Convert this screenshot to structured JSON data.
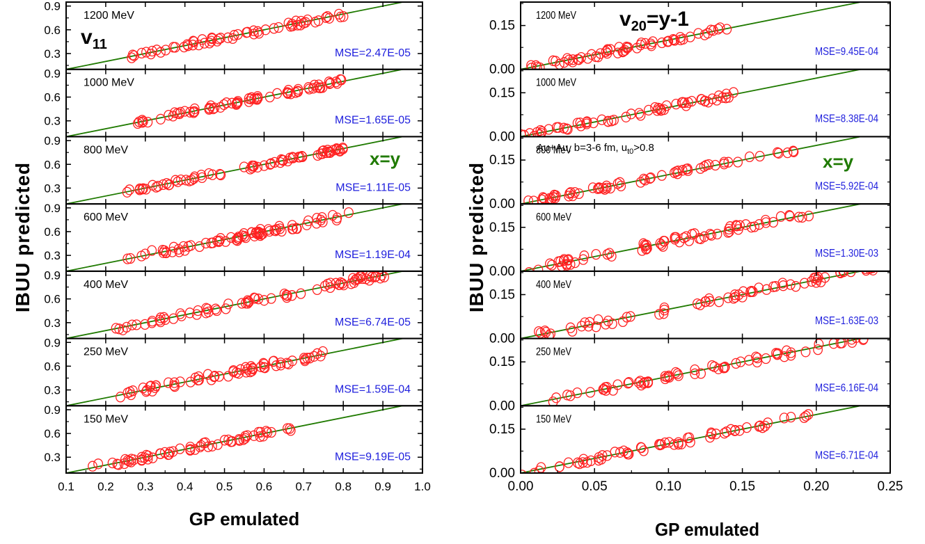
{
  "chart_data": [
    {
      "type": "scatter",
      "title": "",
      "xlabel": "GP emulated",
      "ylabel": "IBUU predicted",
      "xlim": [
        0.1,
        1.0
      ],
      "ylim": [
        0.1,
        0.95
      ],
      "x_ticks": [
        "0.1",
        "0.2",
        "0.3",
        "0.4",
        "0.5",
        "0.6",
        "0.7",
        "0.8",
        "0.9",
        "1.0"
      ],
      "y_ticks": [
        "0.3",
        "0.6",
        "0.9"
      ],
      "observable_label": {
        "main": "v",
        "sub": "11"
      },
      "line_label": "x=y",
      "line_color": "#1f7a00",
      "marker_color": "#ff2020",
      "mse_color": "#1f1fdd",
      "panels": [
        {
          "energy": "1200 MeV",
          "mse": "MSE=2.47E-05",
          "range": [
            0.24,
            0.81
          ],
          "n": 60,
          "scatter": 0.035,
          "seed": 11
        },
        {
          "energy": "1000 MeV",
          "mse": "MSE=1.65E-05",
          "range": [
            0.28,
            0.8
          ],
          "n": 70,
          "scatter": 0.03,
          "seed": 12
        },
        {
          "energy": "800 MeV",
          "mse": "MSE=1.11E-05",
          "range": [
            0.25,
            0.8
          ],
          "n": 70,
          "scatter": 0.025,
          "seed": 13
        },
        {
          "energy": "600 MeV",
          "mse": "MSE=1.19E-04",
          "range": [
            0.25,
            0.82
          ],
          "n": 75,
          "scatter": 0.045,
          "seed": 14
        },
        {
          "energy": "400 MeV",
          "mse": "MSE=6.74E-05",
          "range": [
            0.22,
            0.91
          ],
          "n": 75,
          "scatter": 0.04,
          "seed": 15
        },
        {
          "energy": "250 MeV",
          "mse": "MSE=1.59E-04",
          "range": [
            0.22,
            0.77
          ],
          "n": 65,
          "scatter": 0.04,
          "seed": 16
        },
        {
          "energy": "150 MeV",
          "mse": "MSE=9.19E-05",
          "range": [
            0.16,
            0.67
          ],
          "n": 60,
          "scatter": 0.035,
          "seed": 17
        }
      ]
    },
    {
      "type": "scatter",
      "title": "",
      "xlabel": "GP emulated",
      "ylabel": "IBUU predicted",
      "xlim": [
        0.0,
        0.25
      ],
      "ylim": [
        0.0,
        0.23
      ],
      "x_ticks": [
        "0.00",
        "0.05",
        "0.10",
        "0.15",
        "0.20",
        "0.25"
      ],
      "y_ticks": [
        "0.00",
        "0.15"
      ],
      "observable_label": {
        "main": "v",
        "sub": "20",
        "rest": "=y-1"
      },
      "line_label": "x=y",
      "annotation": {
        "main": "Au+Au, b=3-6 fm, u",
        "sub": "t0",
        "rest": ">0.8"
      },
      "line_color": "#1f7a00",
      "marker_color": "#ff2020",
      "mse_color": "#1f1fdd",
      "panels": [
        {
          "energy": "1200 MeV",
          "mse": "MSE=9.45E-04",
          "range": [
            0.0,
            0.14
          ],
          "n": 60,
          "scatter": 0.01,
          "seed": 21
        },
        {
          "energy": "1000 MeV",
          "mse": "MSE=8.38E-04",
          "range": [
            0.0,
            0.145
          ],
          "n": 60,
          "scatter": 0.009,
          "seed": 22
        },
        {
          "energy": "800 MeV",
          "mse": "MSE=5.92E-04",
          "range": [
            0.005,
            0.185
          ],
          "n": 60,
          "scatter": 0.008,
          "seed": 23
        },
        {
          "energy": "600 MeV",
          "mse": "MSE=1.30E-03",
          "range": [
            0.005,
            0.195
          ],
          "n": 70,
          "scatter": 0.012,
          "seed": 24
        },
        {
          "energy": "400 MeV",
          "mse": "MSE=1.63E-03",
          "range": [
            0.005,
            0.25
          ],
          "n": 70,
          "scatter": 0.012,
          "seed": 25
        },
        {
          "energy": "250 MeV",
          "mse": "MSE=6.16E-04",
          "range": [
            0.02,
            0.235
          ],
          "n": 65,
          "scatter": 0.012,
          "seed": 26
        },
        {
          "energy": "150 MeV",
          "mse": "MSE=6.71E-04",
          "range": [
            0.0,
            0.195
          ],
          "n": 60,
          "scatter": 0.01,
          "seed": 27
        }
      ]
    }
  ]
}
